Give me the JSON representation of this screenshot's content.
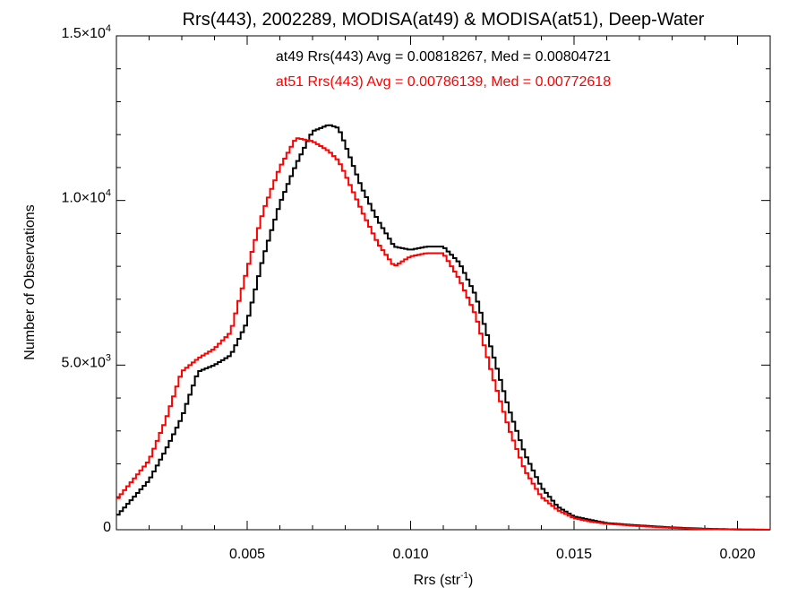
{
  "chart_data": {
    "type": "line",
    "title": "Rrs(443), 2002289, MODISA(at49) & MODISA(at51), Deep-Water",
    "xlabel": "Rrs (str",
    "xlabel_sup": "-1",
    "xlabel_close": ")",
    "ylabel": "Number of Observations",
    "xlim": [
      0.001,
      0.021
    ],
    "ylim": [
      0,
      15000
    ],
    "x_ticks": [
      {
        "value": 0.005,
        "label": "0.005"
      },
      {
        "value": 0.01,
        "label": "0.010"
      },
      {
        "value": 0.015,
        "label": "0.015"
      },
      {
        "value": 0.02,
        "label": "0.020"
      }
    ],
    "y_ticks": [
      {
        "value": 0,
        "label": "0",
        "exp": ""
      },
      {
        "value": 5000,
        "label": "5.0×10",
        "exp": "3"
      },
      {
        "value": 10000,
        "label": "1.0×10",
        "exp": "4"
      },
      {
        "value": 15000,
        "label": "1.5×10",
        "exp": "4"
      }
    ],
    "annotations": [
      {
        "text": "at49 Rrs(443) Avg = 0.00818267, Med = 0.00804721",
        "color": "#000000"
      },
      {
        "text": "at51 Rrs(443) Avg = 0.00786139, Med = 0.00772618",
        "color": "#ff0000"
      }
    ],
    "series": [
      {
        "color": "#000000",
        "x": [
          0.001,
          0.002,
          0.0025,
          0.003,
          0.0035,
          0.004,
          0.0045,
          0.005,
          0.0055,
          0.006,
          0.0065,
          0.007,
          0.0075,
          0.0078,
          0.008,
          0.0085,
          0.009,
          0.0095,
          0.01,
          0.0105,
          0.011,
          0.0115,
          0.012,
          0.0125,
          0.013,
          0.0135,
          0.014,
          0.0145,
          0.015,
          0.0155,
          0.016,
          0.017,
          0.018,
          0.019,
          0.02,
          0.021
        ],
        "values": [
          400,
          1500,
          2400,
          3400,
          4800,
          5000,
          5300,
          6300,
          8300,
          9900,
          11100,
          12100,
          12300,
          12200,
          11700,
          10400,
          9400,
          8600,
          8500,
          8600,
          8600,
          8100,
          7100,
          5400,
          3700,
          2300,
          1300,
          700,
          400,
          300,
          200,
          130,
          70,
          30,
          10,
          0
        ]
      },
      {
        "color": "#ff0000",
        "x": [
          0.001,
          0.002,
          0.0025,
          0.003,
          0.0035,
          0.004,
          0.0045,
          0.005,
          0.0055,
          0.006,
          0.0065,
          0.007,
          0.0075,
          0.0078,
          0.008,
          0.0085,
          0.009,
          0.0095,
          0.01,
          0.0105,
          0.011,
          0.0115,
          0.012,
          0.0125,
          0.013,
          0.0135,
          0.014,
          0.0145,
          0.015,
          0.0155,
          0.016,
          0.017,
          0.018,
          0.019,
          0.02,
          0.021
        ],
        "values": [
          900,
          2100,
          3300,
          4800,
          5200,
          5500,
          6000,
          7900,
          9700,
          11000,
          11900,
          11800,
          11500,
          11200,
          10800,
          9700,
          8700,
          8000,
          8300,
          8400,
          8400,
          7600,
          6500,
          4700,
          3100,
          1800,
          1000,
          600,
          350,
          250,
          180,
          110,
          55,
          20,
          5,
          0
        ]
      }
    ]
  }
}
